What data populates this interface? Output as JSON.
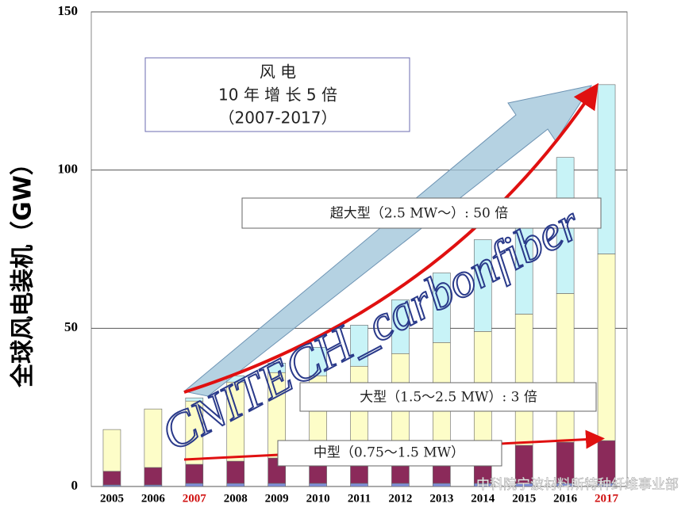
{
  "chart_data": {
    "type": "stacked_bar",
    "y_label": "全球风电装机（GW）",
    "title_lines": [
      "风 电",
      "10 年 增 长 5 倍",
      "（2007-2017）"
    ],
    "annotations": [
      "超大型（2.5 MW～）: 50 倍",
      "大型（1.5～2.5 MW）: 3 倍",
      "中型（0.75～1.5 MW）"
    ],
    "watermarks": [
      "CNITECH_carbonfiber",
      "中科院宁波材料所特种纤维事业部"
    ],
    "categories": [
      "2005",
      "2006",
      "2007",
      "2008",
      "2009",
      "2010",
      "2011",
      "2012",
      "2013",
      "2014",
      "2015",
      "2016",
      "2017"
    ],
    "label_colors": [
      "#000",
      "#000",
      "#d01010",
      "#000",
      "#000",
      "#000",
      "#000",
      "#000",
      "#000",
      "#000",
      "#000",
      "#000",
      "#d01010"
    ],
    "series": [
      {
        "color": "#7f8fd8",
        "values": [
          0.5,
          0.5,
          1,
          1,
          1,
          1,
          1,
          1,
          1,
          1,
          1,
          1,
          1
        ]
      },
      {
        "color": "#8b2a5a",
        "values": [
          4.3,
          5.5,
          6,
          7,
          8,
          7,
          7,
          7,
          7,
          8,
          12,
          13,
          13.5
        ]
      },
      {
        "color": "#fdfdc8",
        "values": [
          13.2,
          18.5,
          20,
          25,
          27,
          27,
          30,
          34,
          37.5,
          40,
          41.5,
          47,
          59
        ]
      },
      {
        "color": "#c8f3f7",
        "values": [
          0,
          0,
          1,
          2,
          3,
          9,
          13,
          17,
          22,
          29,
          34.5,
          43,
          53.5
        ]
      }
    ],
    "ylim": [
      0,
      150
    ],
    "yticks": [
      0,
      50,
      100,
      150
    ],
    "grid": true
  }
}
